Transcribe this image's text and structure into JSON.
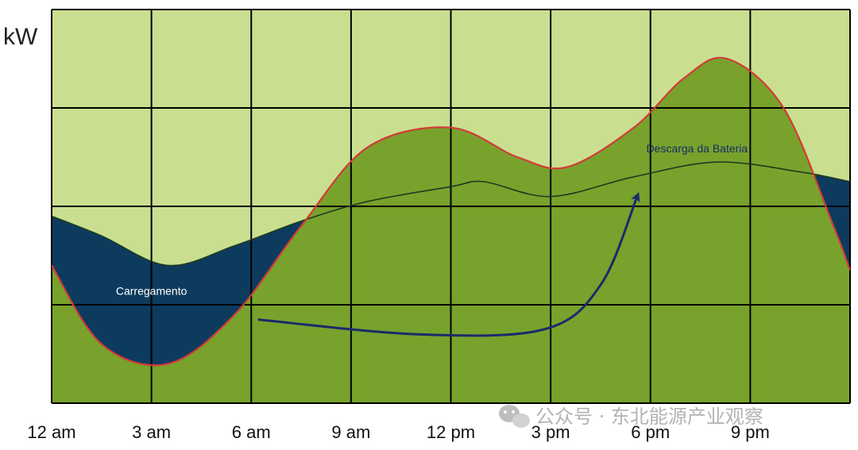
{
  "chart_data": {
    "type": "area",
    "ylabel": "kW",
    "x_tick_labels": [
      "12 am",
      "3 am",
      "6 am",
      "9 am",
      "12 pm",
      "3 pm",
      "6 pm",
      "9 pm"
    ],
    "x_unit": "hour",
    "xlim": [
      0,
      24
    ],
    "ylim": [
      0,
      4
    ],
    "grid": true,
    "series": [
      {
        "color": "#d33a3a",
        "points": [
          [
            0,
            1.4
          ],
          [
            1.5,
            0.6
          ],
          [
            3.5,
            0.4
          ],
          [
            5.5,
            0.9
          ],
          [
            7.5,
            1.8
          ],
          [
            9.5,
            2.6
          ],
          [
            12,
            2.8
          ],
          [
            14,
            2.5
          ],
          [
            15.5,
            2.4
          ],
          [
            17.5,
            2.8
          ],
          [
            19,
            3.3
          ],
          [
            20.3,
            3.5
          ],
          [
            22,
            3.0
          ],
          [
            23.5,
            1.8
          ],
          [
            24,
            1.35
          ]
        ]
      },
      {
        "color": "#1f3a20",
        "points": [
          [
            0,
            1.9
          ],
          [
            1.5,
            1.7
          ],
          [
            3.5,
            1.4
          ],
          [
            5.5,
            1.6
          ],
          [
            7.5,
            1.85
          ],
          [
            9.5,
            2.05
          ],
          [
            12,
            2.2
          ],
          [
            13,
            2.25
          ],
          [
            15,
            2.1
          ],
          [
            17.5,
            2.3
          ],
          [
            20,
            2.45
          ],
          [
            22.5,
            2.35
          ],
          [
            24,
            2.25
          ]
        ]
      }
    ],
    "fill_colors": {
      "charging": "#0d3b5e",
      "base": "#78a22b",
      "discharge": "#c9df8f"
    },
    "annotations": [
      {
        "text": "Carregamento",
        "x": 3,
        "y": 1.1
      },
      {
        "text": "Descarga da Bateria",
        "x": 19.4,
        "y": 2.55
      }
    ],
    "arrow": {
      "color": "#1a2a6b",
      "points": [
        [
          6.2,
          0.85
        ],
        [
          11,
          0.7
        ],
        [
          14.8,
          0.75
        ],
        [
          16.5,
          1.2
        ],
        [
          17.6,
          2.1
        ]
      ]
    }
  },
  "watermark": {
    "text": "公众号 · 东北能源产业观察",
    "icon": "wechat-icon"
  }
}
